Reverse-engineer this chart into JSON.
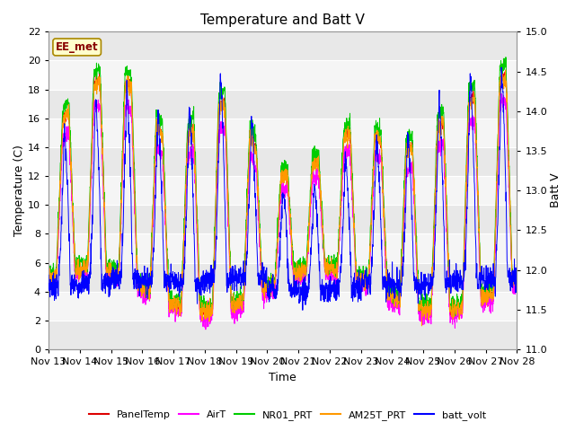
{
  "title": "Temperature and Batt V",
  "xlabel": "Time",
  "ylabel_left": "Temperature (C)",
  "ylabel_right": "Batt V",
  "annotation": "EE_met",
  "ylim_left": [
    0,
    22
  ],
  "ylim_right": [
    11.0,
    15.0
  ],
  "yticks_left": [
    0,
    2,
    4,
    6,
    8,
    10,
    12,
    14,
    16,
    18,
    20,
    22
  ],
  "yticks_right": [
    11.0,
    11.5,
    12.0,
    12.5,
    13.0,
    13.5,
    14.0,
    14.5,
    15.0
  ],
  "xtick_labels": [
    "Nov 13",
    "Nov 14",
    "Nov 15",
    "Nov 16",
    "Nov 17",
    "Nov 18",
    "Nov 19",
    "Nov 20",
    "Nov 21",
    "Nov 22",
    "Nov 23",
    "Nov 24",
    "Nov 25",
    "Nov 26",
    "Nov 27",
    "Nov 28"
  ],
  "series_colors": {
    "PanelTemp": "#ff0000",
    "AirT": "#ff00ff",
    "NR01_PRT": "#00cc00",
    "AM25T_PRT": "#ff9900",
    "batt_volt": "#0000ff"
  },
  "legend_colors": [
    "#dd0000",
    "#ff00ff",
    "#00cc00",
    "#ff9900",
    "#0000ff"
  ],
  "legend_labels": [
    "PanelTemp",
    "AirT",
    "NR01_PRT",
    "AM25T_PRT",
    "batt_volt"
  ],
  "background_color": "#ffffff",
  "plot_bg_color": "#e8e8e8",
  "grid_color": "#ffffff",
  "title_fontsize": 11,
  "label_fontsize": 9,
  "band_colors": [
    "#e8e8e8",
    "#f5f5f5"
  ]
}
